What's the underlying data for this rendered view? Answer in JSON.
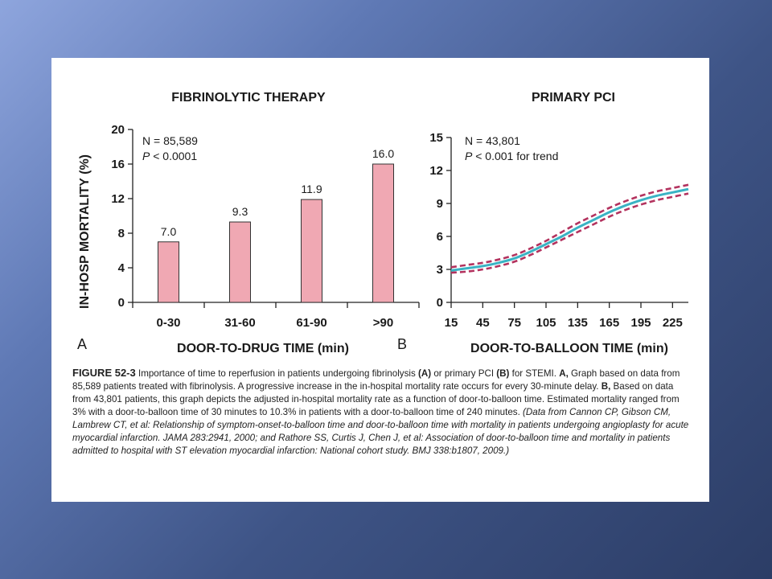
{
  "chart_data": [
    {
      "type": "bar",
      "title": "FIBRINOLYTIC THERAPY",
      "xlabel": "DOOR-TO-DRUG TIME (min)",
      "ylabel": "IN-HOSP MORTALITY (%)",
      "categories": [
        "0-30",
        "31-60",
        "61-90",
        ">90"
      ],
      "values": [
        7.0,
        9.3,
        11.9,
        16.0
      ],
      "value_labels": [
        "7.0",
        "9.3",
        "11.9",
        "16.0"
      ],
      "ylim": [
        0,
        20
      ],
      "yticks": [
        0,
        4,
        8,
        12,
        16,
        20
      ],
      "annotation_n": "N = 85,589",
      "annotation_p_letter": "P",
      "annotation_p_rest": " < 0.0001",
      "panel_letter": "A",
      "bar_color": "#f0a8b3"
    },
    {
      "type": "line",
      "title": "PRIMARY PCI",
      "xlabel": "DOOR-TO-BALLOON TIME (min)",
      "ylabel": "",
      "xlim": [
        15,
        240
      ],
      "xticks": [
        15,
        45,
        75,
        105,
        135,
        165,
        195,
        225
      ],
      "ylim": [
        0,
        15
      ],
      "yticks": [
        0,
        3,
        6,
        9,
        12,
        15
      ],
      "x": [
        15,
        30,
        45,
        60,
        75,
        90,
        105,
        120,
        135,
        150,
        165,
        180,
        195,
        210,
        225,
        240
      ],
      "series": [
        {
          "values": [
            2.9,
            3.1,
            3.3,
            3.6,
            4.0,
            4.6,
            5.3,
            6.0,
            6.8,
            7.5,
            8.2,
            8.8,
            9.3,
            9.7,
            10.0,
            10.3
          ],
          "color": "#3ab3c4",
          "style": "solid"
        },
        {
          "values": [
            3.2,
            3.4,
            3.6,
            3.9,
            4.3,
            4.9,
            5.6,
            6.4,
            7.2,
            7.9,
            8.6,
            9.2,
            9.7,
            10.1,
            10.4,
            10.7
          ],
          "color": "#b3325e",
          "style": "dashed"
        },
        {
          "values": [
            2.7,
            2.8,
            3.0,
            3.3,
            3.7,
            4.3,
            5.0,
            5.7,
            6.4,
            7.1,
            7.8,
            8.4,
            8.9,
            9.3,
            9.6,
            9.9
          ],
          "color": "#b3325e",
          "style": "dashed"
        }
      ],
      "annotation_n": "N = 43,801",
      "annotation_p_letter": "P",
      "annotation_p_rest": " < 0.001 for trend",
      "panel_letter": "B"
    }
  ],
  "caption": {
    "figure_number": "FIGURE 52-3",
    "intro": " Importance of time to reperfusion in patients undergoing fibrinolysis ",
    "label_a": "(A)",
    "mid": " or primary PCI ",
    "label_b": "(B)",
    "intro_end": " for STEMI. ",
    "a_marker": "A,",
    "a_text": " Graph based on data from 85,589 patients treated with fibrinolysis. A progressive increase in the in-hospital mortality rate occurs for every 30-minute delay. ",
    "b_marker": "B,",
    "b_text": " Based on data from 43,801 patients, this graph depicts the adjusted in-hospital mortality rate as a function of door-to-balloon time. Estimated mortality ranged from 3% with a door-to-balloon time of 30 minutes to 10.3% in patients with a door-to-balloon time of 240 minutes. ",
    "citation": "(Data from Cannon CP, Gibson CM, Lambrew CT, et al: Relationship of symptom-onset-to-balloon time and door-to-balloon time with mortality in patients undergoing angioplasty for acute myocardial infarction. JAMA 283:2941, 2000; and Rathore SS, Curtis J, Chen J, et al: Association of door-to-balloon time and mortality in patients admitted to hospital with ST elevation myocardial infarction: National cohort study. BMJ 338:b1807, 2009.)"
  }
}
